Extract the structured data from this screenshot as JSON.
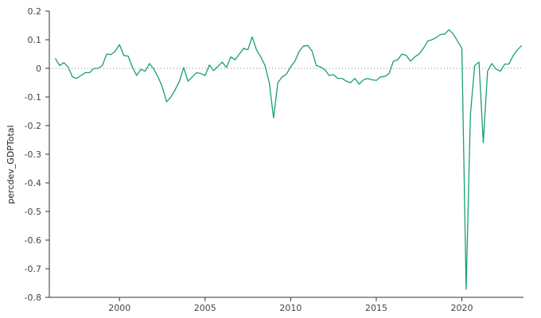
{
  "chart_data": {
    "type": "line",
    "title": "",
    "xlabel": "",
    "ylabel": "percdev_GDPTotal",
    "xlim": [
      1995.9,
      2023.6
    ],
    "ylim": [
      -0.8,
      0.2
    ],
    "grid": false,
    "legend": "none",
    "x_ticks": [
      {
        "value": 2000,
        "label": "2000"
      },
      {
        "value": 2005,
        "label": "2005"
      },
      {
        "value": 2010,
        "label": "2010"
      },
      {
        "value": 2015,
        "label": "2015"
      },
      {
        "value": 2020,
        "label": "2020"
      }
    ],
    "y_ticks": [
      {
        "value": 0.2,
        "label": "0.2"
      },
      {
        "value": 0.1,
        "label": "0.1"
      },
      {
        "value": 0,
        "label": "0"
      },
      {
        "value": -0.1,
        "label": "-0.1"
      },
      {
        "value": -0.2,
        "label": "-0.2"
      },
      {
        "value": -0.3,
        "label": "-0.3"
      },
      {
        "value": -0.4,
        "label": "-0.4"
      },
      {
        "value": -0.5,
        "label": "-0.5"
      },
      {
        "value": -0.6,
        "label": "-0.6"
      },
      {
        "value": -0.7,
        "label": "-0.7"
      },
      {
        "value": -0.8,
        "label": "-0.8"
      }
    ],
    "zero_line": {
      "value": 0,
      "style": "dotted"
    },
    "colors": {
      "line": "#1a9e77",
      "axis": "#333333",
      "zero_line": "#888888"
    },
    "series": [
      {
        "x": [
          1996.25,
          1996.5,
          1996.75,
          1997,
          1997.25,
          1997.5,
          1997.75,
          1998,
          1998.25,
          1998.5,
          1998.75,
          1999,
          1999.25,
          1999.5,
          1999.75,
          2000,
          2000.25,
          2000.5,
          2000.75,
          2001,
          2001.25,
          2001.5,
          2001.75,
          2002,
          2002.25,
          2002.5,
          2002.75,
          2003,
          2003.25,
          2003.5,
          2003.75,
          2004,
          2004.25,
          2004.5,
          2004.75,
          2005,
          2005.25,
          2005.5,
          2005.75,
          2006,
          2006.25,
          2006.5,
          2006.75,
          2007,
          2007.25,
          2007.5,
          2007.75,
          2008,
          2008.25,
          2008.5,
          2008.75,
          2009,
          2009.25,
          2009.5,
          2009.75,
          2010,
          2010.25,
          2010.5,
          2010.75,
          2011,
          2011.25,
          2011.5,
          2011.75,
          2012,
          2012.25,
          2012.5,
          2012.75,
          2013,
          2013.25,
          2013.5,
          2013.75,
          2014,
          2014.25,
          2014.5,
          2014.75,
          2015,
          2015.25,
          2015.5,
          2015.75,
          2016,
          2016.25,
          2016.5,
          2016.75,
          2017,
          2017.25,
          2017.5,
          2017.75,
          2018,
          2018.25,
          2018.5,
          2018.75,
          2019,
          2019.25,
          2019.5,
          2019.75,
          2020,
          2020.25,
          2020.5,
          2020.75,
          2021,
          2021.25,
          2021.5,
          2021.75,
          2022,
          2022.25,
          2022.5,
          2022.75,
          2023,
          2023.25,
          2023.5
        ],
        "values": [
          0.035,
          0.01,
          0.02,
          0.005,
          -0.03,
          -0.035,
          -0.025,
          -0.015,
          -0.015,
          0.0,
          0.0,
          0.01,
          0.05,
          0.048,
          0.06,
          0.083,
          0.045,
          0.043,
          0.005,
          -0.025,
          -0.003,
          -0.01,
          0.017,
          -0.002,
          -0.03,
          -0.065,
          -0.117,
          -0.1,
          -0.075,
          -0.045,
          0.003,
          -0.045,
          -0.03,
          -0.015,
          -0.018,
          -0.025,
          0.012,
          -0.008,
          0.007,
          0.022,
          0.003,
          0.04,
          0.03,
          0.05,
          0.07,
          0.065,
          0.11,
          0.065,
          0.04,
          0.01,
          -0.05,
          -0.173,
          -0.05,
          -0.03,
          -0.02,
          0.005,
          0.025,
          0.06,
          0.078,
          0.08,
          0.06,
          0.01,
          0.005,
          -0.005,
          -0.025,
          -0.022,
          -0.035,
          -0.035,
          -0.045,
          -0.05,
          -0.035,
          -0.055,
          -0.04,
          -0.035,
          -0.04,
          -0.042,
          -0.03,
          -0.028,
          -0.018,
          0.025,
          0.03,
          0.05,
          0.045,
          0.025,
          0.04,
          0.05,
          0.07,
          0.095,
          0.1,
          0.108,
          0.118,
          0.12,
          0.135,
          0.12,
          0.095,
          0.07,
          -0.772,
          -0.16,
          0.01,
          0.022,
          -0.26,
          -0.01,
          0.017,
          -0.003,
          -0.01,
          0.015,
          0.015,
          0.045,
          0.065,
          0.08
        ]
      }
    ]
  }
}
